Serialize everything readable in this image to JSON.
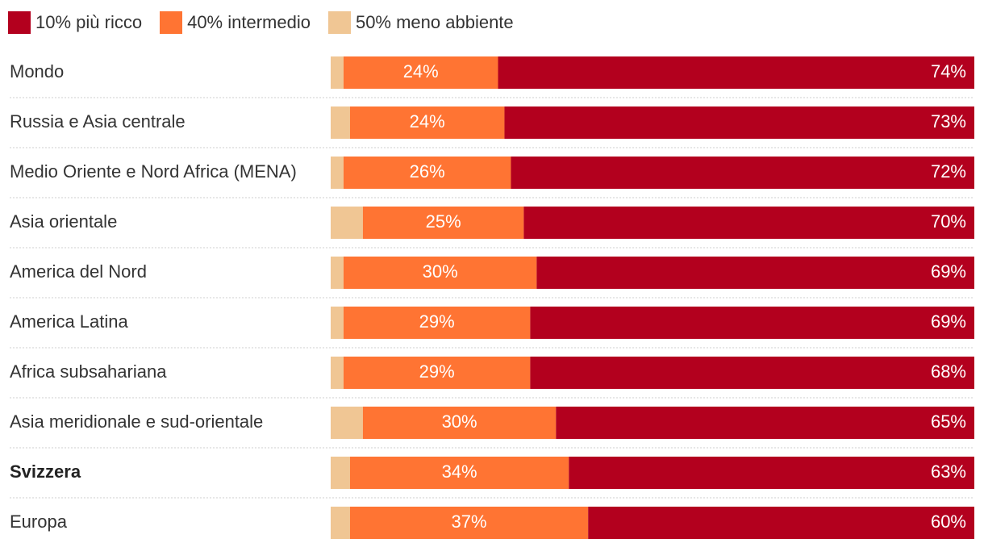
{
  "legend": [
    {
      "label": "10% più ricco",
      "color": "#b3001e"
    },
    {
      "label": "40% intermedio",
      "color": "#ff7433"
    },
    {
      "label": "50% meno abbiente",
      "color": "#f0c694"
    }
  ],
  "chart_data": {
    "type": "bar",
    "orientation": "horizontal",
    "stacked": true,
    "categories": [
      "Mondo",
      "Russia e Asia centrale",
      "Medio Oriente e Nord Africa (MENA)",
      "Asia orientale",
      "America del Nord",
      "America Latina",
      "Africa subsahariana",
      "Asia meridionale e sud-orientale",
      "Svizzera",
      "Europa"
    ],
    "highlight_category": "Svizzera",
    "series": [
      {
        "name": "50% meno abbiente",
        "color": "#f0c694",
        "values": [
          2,
          3,
          2,
          5,
          2,
          2,
          2,
          5,
          3,
          3
        ],
        "labels_shown": false
      },
      {
        "name": "40% intermedio",
        "color": "#ff7433",
        "values": [
          24,
          24,
          26,
          25,
          30,
          29,
          29,
          30,
          34,
          37
        ],
        "labels_shown": true
      },
      {
        "name": "10% più ricco",
        "color": "#b3001e",
        "values": [
          74,
          73,
          72,
          70,
          69,
          69,
          68,
          65,
          63,
          60
        ],
        "labels_shown": true
      }
    ],
    "xlim": [
      0,
      100
    ],
    "value_suffix": "%",
    "title": "",
    "xlabel": "",
    "ylabel": ""
  }
}
